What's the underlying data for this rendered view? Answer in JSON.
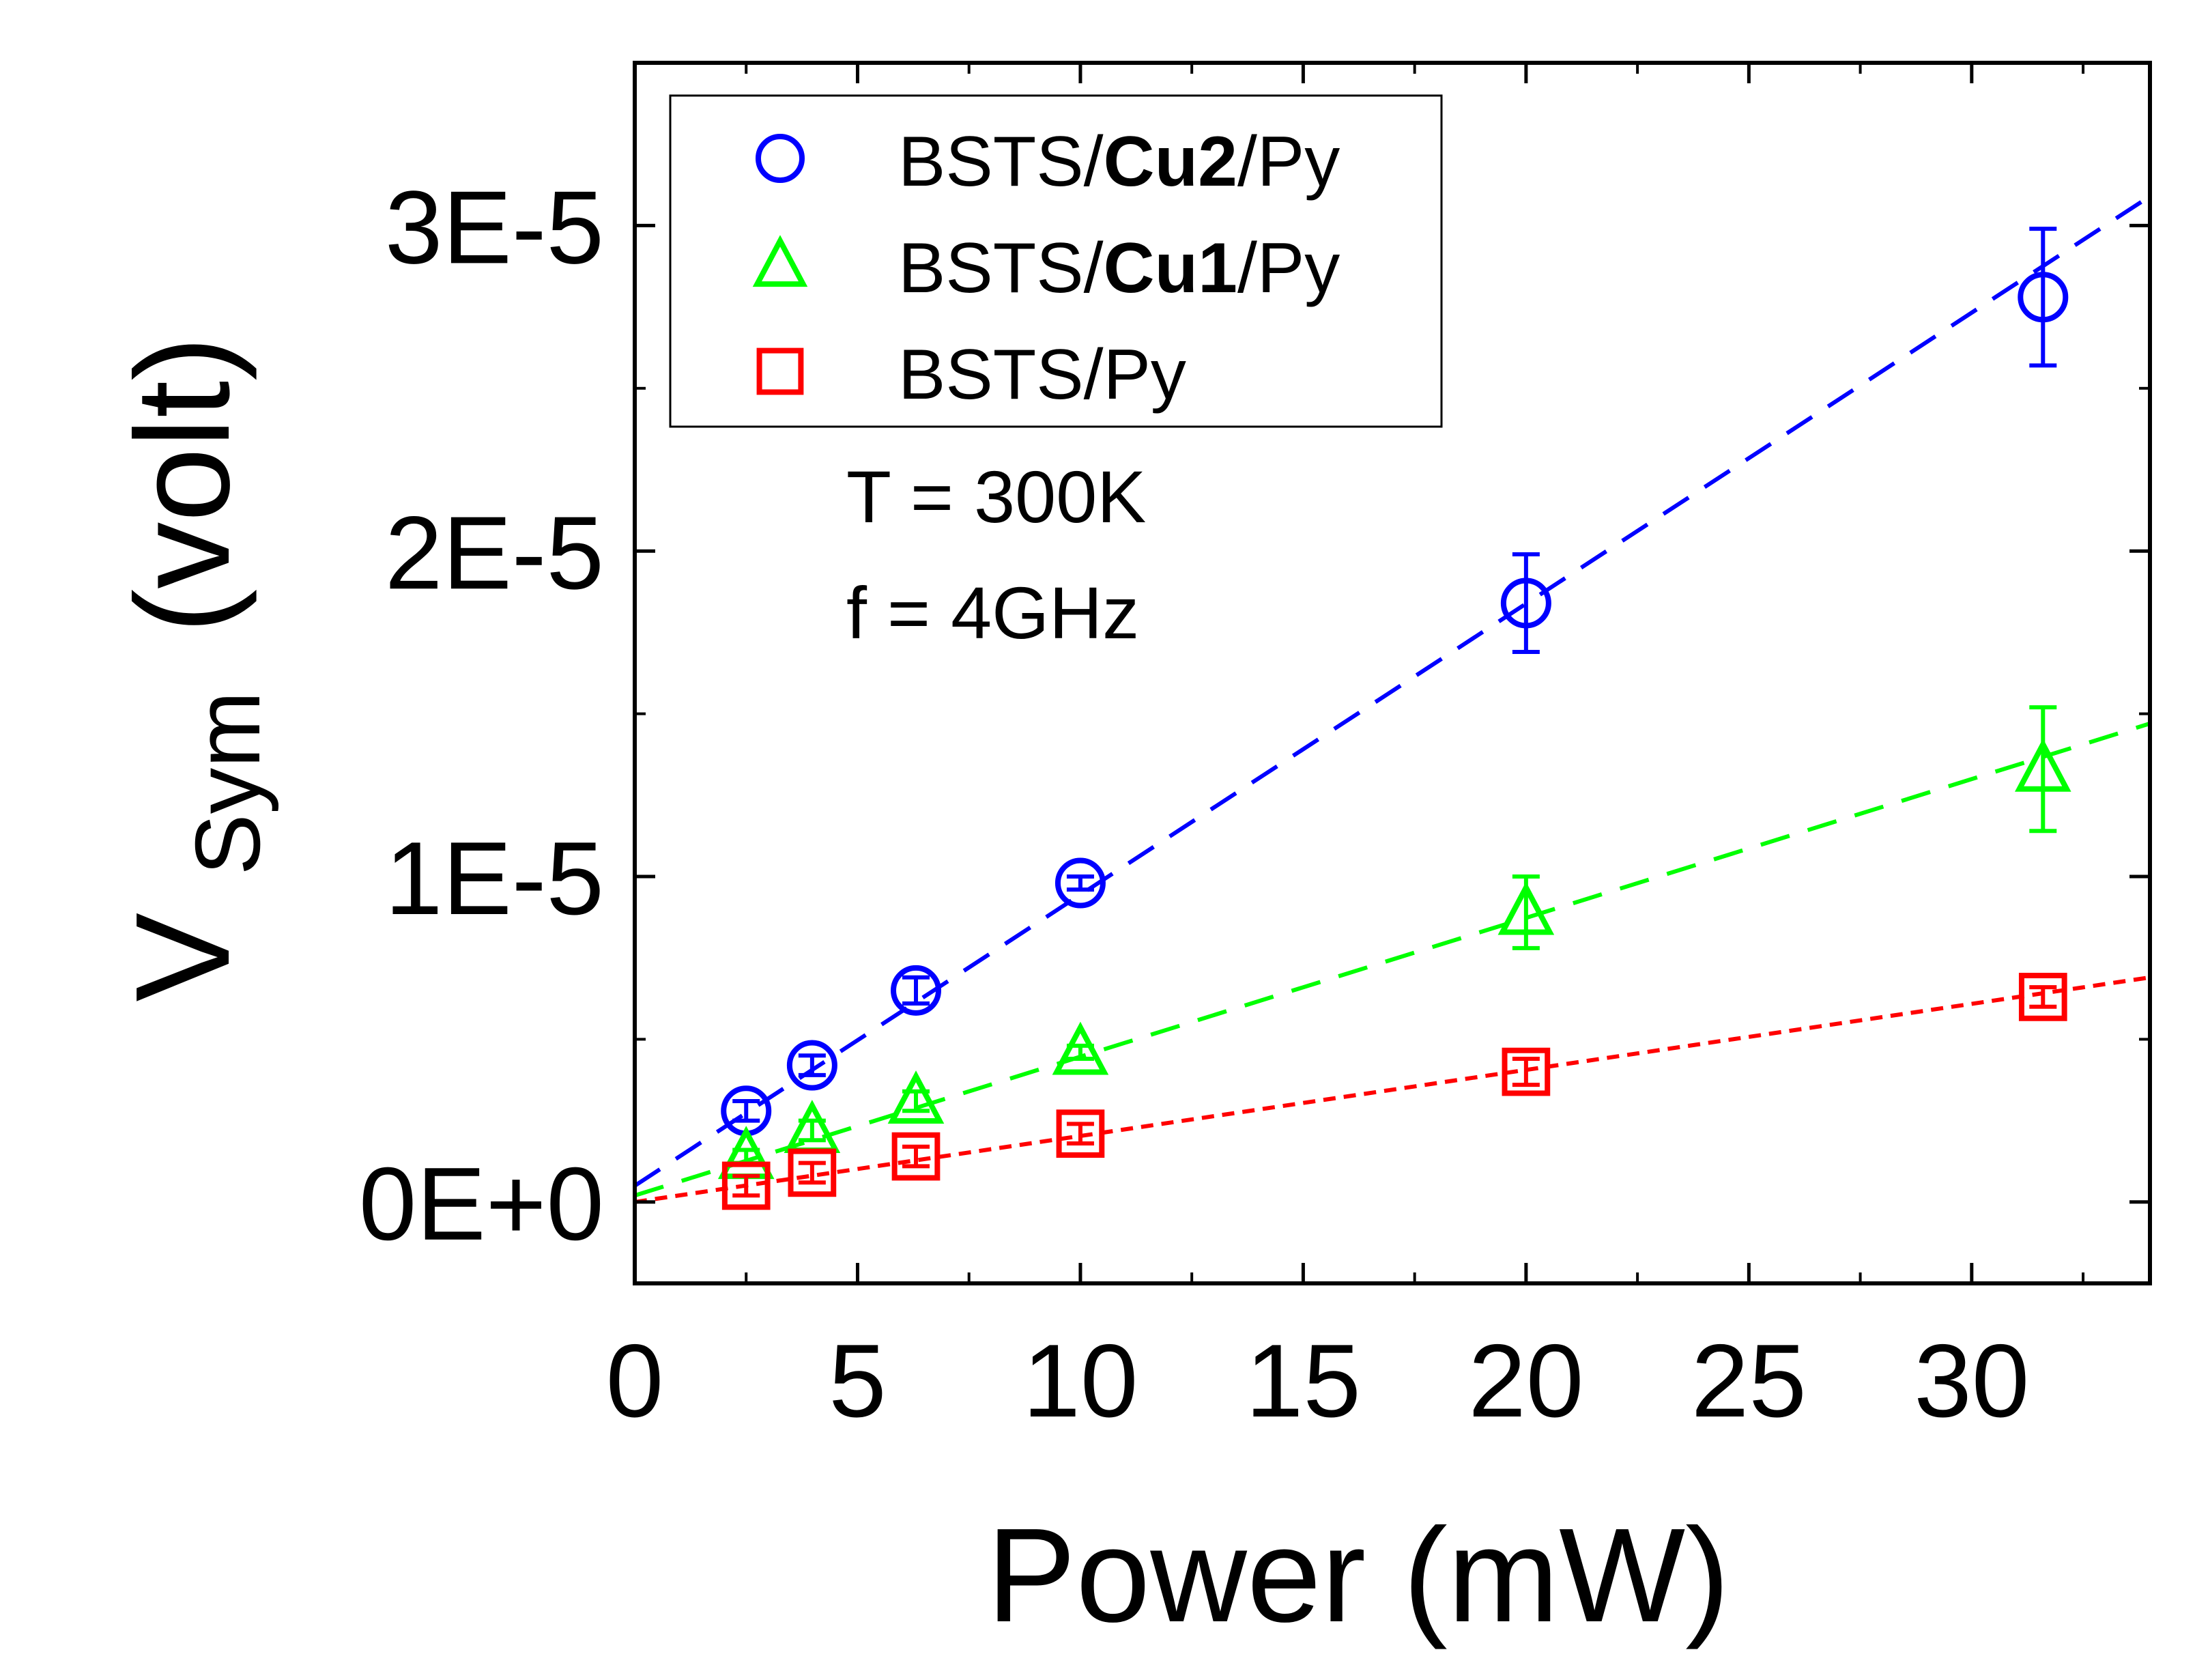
{
  "chart_data": {
    "type": "scatter",
    "xlabel": "Power (mW)",
    "ylabel": {
      "main": "V",
      "subscript": "Sym",
      "rest": "(volt)"
    },
    "xlim": [
      0,
      34
    ],
    "ylim": [
      -2.5e-06,
      3.5e-05
    ],
    "x_ticks": [
      {
        "value": 0,
        "label": "0"
      },
      {
        "value": 5,
        "label": "5"
      },
      {
        "value": 10,
        "label": "10"
      },
      {
        "value": 15,
        "label": "15"
      },
      {
        "value": 20,
        "label": "20"
      },
      {
        "value": 25,
        "label": "25"
      },
      {
        "value": 30,
        "label": "30"
      }
    ],
    "y_ticks": [
      {
        "value": 0,
        "label": "0E+0"
      },
      {
        "value": 1e-05,
        "label": "1E-5"
      },
      {
        "value": 2e-05,
        "label": "2E-5"
      },
      {
        "value": 3e-05,
        "label": "3E-5"
      }
    ],
    "annotations": [
      "T = 300K",
      "f = 4GHz"
    ],
    "legend_position": "top-left",
    "series": [
      {
        "name": "BSTS/Cu2/Py",
        "legend": {
          "pre": "BSTS/",
          "bold": "Cu2",
          "post": "/Py"
        },
        "marker": "circle",
        "color": "#0000ff",
        "x": [
          2.5,
          3.98,
          6.31,
          10,
          20,
          31.6
        ],
        "y": [
          2.8e-06,
          4.2e-06,
          6.5e-06,
          9.8e-06,
          1.84e-05,
          2.78e-05
        ],
        "err": [
          3e-07,
          3e-07,
          4e-07,
          2e-07,
          1.5e-06,
          2.1e-06
        ],
        "fit": {
          "x0": 0,
          "y0": 5e-07,
          "x1": 34,
          "y1": 3.09e-05,
          "dash": "44,28"
        }
      },
      {
        "name": "BSTS/Cu1/Py",
        "legend": {
          "pre": "BSTS/",
          "bold": "Cu1",
          "post": "/Py"
        },
        "marker": "triangle",
        "color": "#00ff00",
        "x": [
          2.5,
          3.98,
          6.31,
          10,
          20,
          31.6
        ],
        "y": [
          1.4e-06,
          2.2e-06,
          3.1e-06,
          4.6e-06,
          8.9e-06,
          1.33e-05
        ],
        "err": [
          2e-07,
          3e-07,
          3e-07,
          2e-07,
          1.1e-06,
          1.9e-06
        ],
        "fit": {
          "x0": 0,
          "y0": 2e-07,
          "x1": 34,
          "y1": 1.47e-05,
          "dash": "44,28"
        }
      },
      {
        "name": "BSTS/Py",
        "legend": {
          "pre": "BSTS/Py",
          "bold": "",
          "post": ""
        },
        "marker": "square",
        "color": "#ff0000",
        "x": [
          2.5,
          3.98,
          6.31,
          10,
          20,
          31.6
        ],
        "y": [
          5e-07,
          9e-07,
          1.4e-06,
          2.1e-06,
          4e-06,
          6.3e-06
        ],
        "err": [
          3e-07,
          3e-07,
          3e-07,
          3e-07,
          4e-07,
          3e-07
        ],
        "fit": {
          "x0": 0,
          "y0": 0,
          "x1": 34,
          "y1": 6.9e-06,
          "dash": "18,12"
        }
      }
    ]
  }
}
